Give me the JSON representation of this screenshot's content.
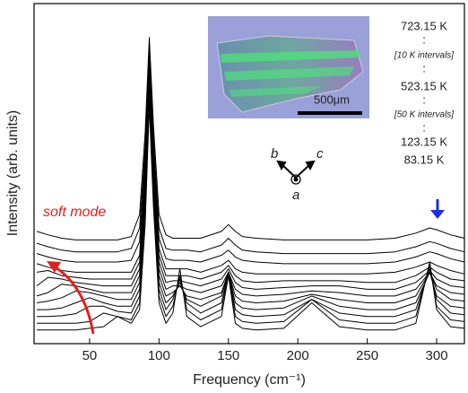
{
  "chart_data": {
    "type": "line",
    "xlabel": "Frequency (cm⁻¹)",
    "ylabel": "Intensity (arb. units)",
    "x": [
      12,
      20,
      30,
      40,
      50,
      60,
      70,
      80,
      86,
      90,
      93,
      96,
      100,
      105,
      110,
      115,
      120,
      130,
      145,
      150,
      155,
      160,
      170,
      190,
      210,
      230,
      250,
      270,
      285,
      295,
      300,
      310,
      320
    ],
    "xlim": [
      10,
      320
    ],
    "xticks": [
      50,
      100,
      150,
      200,
      250,
      300
    ],
    "ylim": [
      0,
      100
    ],
    "series": [
      {
        "color": "#000000",
        "values": [
          4,
          4,
          4,
          4,
          4.5,
          5,
          8,
          6,
          10,
          35,
          70,
          40,
          12,
          6,
          9,
          22,
          8,
          5,
          8,
          20,
          6,
          4.5,
          4,
          4.5,
          12,
          5,
          4,
          4,
          6,
          24,
          10,
          5,
          4.5
        ]
      },
      {
        "color": "#000000",
        "values": [
          6,
          6,
          6,
          6,
          6.5,
          9,
          8,
          7,
          12,
          38,
          72,
          42,
          14,
          8,
          11,
          20,
          10,
          7,
          10,
          21,
          8,
          6.5,
          6,
          6.5,
          13,
          7,
          6,
          6,
          8,
          23,
          11,
          7,
          6.5
        ]
      },
      {
        "color": "#000000",
        "values": [
          8,
          8,
          8.2,
          8.8,
          11,
          11,
          9.5,
          9,
          14,
          40,
          74,
          44,
          16,
          10,
          13,
          19,
          12,
          9,
          12,
          21,
          10,
          8.5,
          8,
          8.5,
          13,
          9,
          8,
          8,
          10,
          22,
          13,
          9,
          8.5
        ]
      },
      {
        "color": "#000000",
        "values": [
          10,
          10,
          10.5,
          12,
          13.5,
          12,
          11,
          11,
          16,
          42,
          76,
          46,
          18,
          12,
          14,
          18,
          13,
          11,
          14,
          21,
          12,
          10.5,
          10,
          10.5,
          14,
          11,
          10,
          10,
          12,
          21,
          14,
          11,
          10.5
        ]
      },
      {
        "color": "#000000",
        "values": [
          12,
          12.5,
          13.5,
          15.5,
          15,
          14,
          13,
          13,
          18,
          44,
          78,
          48,
          20,
          14,
          15,
          17,
          14,
          13,
          15,
          21,
          14,
          12.5,
          12,
          12.5,
          14.5,
          13,
          12,
          12,
          14,
          21,
          16,
          13,
          12.5
        ]
      },
      {
        "color": "#000000",
        "values": [
          14,
          15,
          17.5,
          17,
          16,
          15,
          15,
          15,
          20,
          46,
          80,
          50,
          22,
          16,
          17,
          17,
          16,
          15,
          17,
          21,
          16,
          14.5,
          14,
          14.5,
          15.5,
          15,
          14,
          14,
          16,
          21,
          17,
          15,
          14.5
        ]
      },
      {
        "color": "#000000",
        "values": [
          17,
          19.5,
          19,
          18,
          17.5,
          17,
          17,
          17,
          22,
          48,
          82,
          52,
          24,
          18,
          18.5,
          18.5,
          18,
          17,
          19,
          22,
          18,
          16.5,
          16,
          16.5,
          17,
          17,
          16,
          16,
          18,
          21.5,
          19,
          17,
          16.5
        ]
      },
      {
        "color": "#000000",
        "values": [
          21,
          21.5,
          20,
          19.5,
          19,
          19,
          19,
          19,
          24,
          50,
          84,
          54,
          26,
          20,
          20,
          20,
          20,
          19,
          21,
          23,
          20,
          18.5,
          18,
          18.5,
          18.5,
          18.5,
          18,
          18,
          20,
          22.5,
          21,
          19,
          18.5
        ]
      },
      {
        "color": "#000000",
        "values": [
          23.5,
          22.5,
          21.5,
          21,
          21,
          21,
          21,
          21,
          26,
          52,
          86,
          56,
          28,
          22,
          22,
          22,
          22,
          21,
          23,
          24.5,
          22,
          21,
          20.5,
          20.5,
          20.5,
          20.5,
          20.5,
          21,
          22.5,
          24,
          23,
          21.5,
          20.5
        ]
      },
      {
        "color": "#000000",
        "values": [
          26.5,
          25.5,
          24.5,
          24,
          24,
          24,
          24,
          24.5,
          30,
          55,
          87,
          58,
          31,
          25,
          24.5,
          24.5,
          24.5,
          24,
          26,
          27.5,
          25.5,
          24.5,
          24,
          23.5,
          23.5,
          23.5,
          23.5,
          24,
          25.5,
          27,
          26.5,
          25,
          24
        ]
      },
      {
        "color": "#000000",
        "values": [
          29.5,
          28.5,
          27.5,
          27,
          27,
          27,
          27,
          28,
          34,
          58,
          88,
          60,
          34,
          28,
          27.5,
          27.5,
          27.5,
          27,
          29,
          31,
          29,
          27.5,
          27,
          26.5,
          26.5,
          26.5,
          26.5,
          27,
          28.5,
          30,
          29.5,
          28,
          27
        ]
      },
      {
        "color": "#000000",
        "values": [
          33,
          32,
          31,
          30.5,
          30.5,
          30.5,
          30.5,
          31.5,
          38,
          62,
          90,
          64,
          38,
          32,
          31,
          31,
          31,
          31,
          33,
          35,
          33,
          31.5,
          31,
          30.5,
          30.5,
          30.5,
          30.5,
          31,
          32.5,
          34,
          33.5,
          32,
          31
        ]
      }
    ],
    "annotations": [
      "soft mode",
      "723.15 K",
      ":",
      "[10 K intervals]",
      ":",
      "523.15 K",
      ":",
      "[50 K intervals]",
      ":",
      "123.15 K",
      "83.15 K",
      "500μm",
      "b",
      "c",
      "a"
    ]
  }
}
